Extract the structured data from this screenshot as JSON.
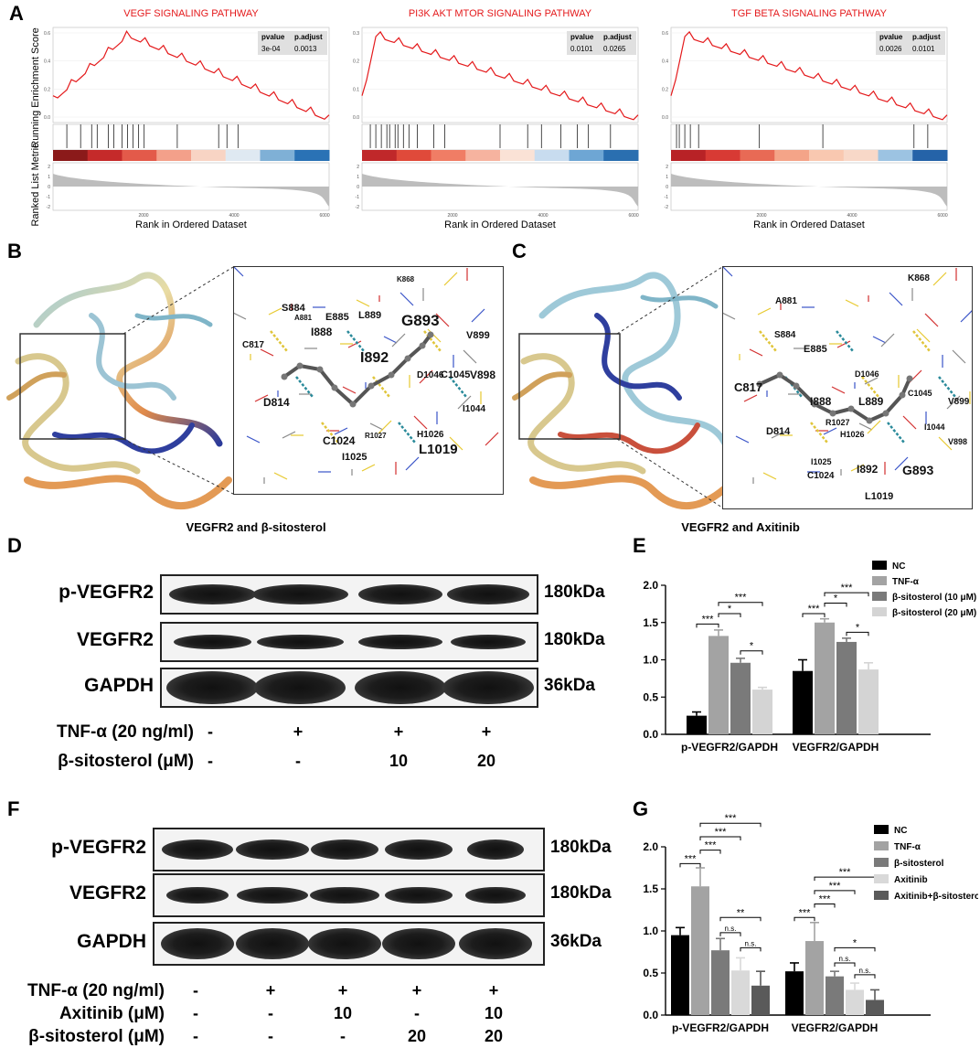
{
  "panels": {
    "A": "A",
    "B": "B",
    "C": "C",
    "D": "D",
    "E": "E",
    "F": "F",
    "G": "G"
  },
  "gsea": {
    "ylabel_top": "Running Enrichment Score",
    "ylabel_bottom": "Ranked List Metric",
    "xlabel": "Rank in Ordered Dataset",
    "x_ticks": [
      "2000",
      "4000",
      "6000"
    ],
    "metric_ticks": [
      "2",
      "1",
      "0",
      "-1",
      "-2"
    ],
    "plots": [
      {
        "title": "VEGF SIGNALING PATHWAY",
        "table_headers": [
          "pvalue",
          "p.adjust"
        ],
        "table_values": [
          "3e-04",
          "0.0013"
        ],
        "es_ticks": [
          "0.6",
          "0.4",
          "0.2",
          "0.0"
        ],
        "es_max": 0.6,
        "es_min": -0.02
      },
      {
        "title": "PI3K AKT MTOR SIGNALING PATHWAY",
        "table_headers": [
          "pvalue",
          "p.adjust"
        ],
        "table_values": [
          "0.0101",
          "0.0265"
        ],
        "es_ticks": [
          "0.3",
          "0.2",
          "0.1",
          "0.0"
        ],
        "es_max": 0.32,
        "es_min": -0.02
      },
      {
        "title": "TGF BETA SIGNALING PATHWAY",
        "table_headers": [
          "pvalue",
          "p.adjust"
        ],
        "table_values": [
          "0.0026",
          "0.0101"
        ],
        "es_ticks": [
          "0.6",
          "0.4",
          "0.2",
          "0.0"
        ],
        "es_max": 0.62,
        "es_min": -0.02
      }
    ]
  },
  "docking": {
    "B_caption": "VEGFR2 and β-sitosterol",
    "C_caption": "VEGFR2 and Axitinib",
    "B_residues": [
      "K868",
      "S884",
      "A881",
      "E885",
      "L889",
      "G893",
      "I888",
      "C817",
      "I892",
      "V899",
      "D1046",
      "C1045",
      "V898",
      "D814",
      "I1044",
      "H1026",
      "C1024",
      "R1027",
      "L1019",
      "I1025"
    ],
    "C_residues": [
      "K868",
      "A881",
      "S884",
      "E885",
      "C817",
      "D1046",
      "C1045",
      "V899",
      "I888",
      "L889",
      "D814",
      "R1027",
      "H1026",
      "I1044",
      "V898",
      "I1025",
      "I892",
      "G893",
      "C1024",
      "L1019"
    ]
  },
  "western_D": {
    "proteins": [
      "p-VEGFR2",
      "VEGFR2",
      "GAPDH"
    ],
    "kda": [
      "180kDa",
      "180kDa",
      "36kDa"
    ],
    "treatments": [
      {
        "label": "TNF-α (20 ng/ml)",
        "values": [
          "-",
          "+",
          "+",
          "+"
        ]
      },
      {
        "label": "β-sitosterol (μM)",
        "values": [
          "-",
          "-",
          "10",
          "20"
        ]
      }
    ]
  },
  "western_F": {
    "proteins": [
      "p-VEGFR2",
      "VEGFR2",
      "GAPDH"
    ],
    "kda": [
      "180kDa",
      "180kDa",
      "36kDa"
    ],
    "treatments": [
      {
        "label": "TNF-α (20 ng/ml)",
        "values": [
          "-",
          "+",
          "+",
          "+",
          "+"
        ]
      },
      {
        "label": "Axitinib (μM)",
        "values": [
          "-",
          "-",
          "10",
          "-",
          "10"
        ]
      },
      {
        "label": "β-sitosterol (μM)",
        "values": [
          "-",
          "-",
          "-",
          "20",
          "20"
        ]
      }
    ]
  },
  "chart_data": [
    {
      "panel": "E",
      "type": "bar",
      "categories": [
        "p-VEGFR2/GAPDH",
        "VEGFR2/GAPDH"
      ],
      "ylim": [
        0,
        2.0
      ],
      "yticks": [
        "0.0",
        "0.5",
        "1.0",
        "1.5",
        "2.0"
      ],
      "series": [
        {
          "name": "NC",
          "color": "#000000",
          "values": [
            0.25,
            0.85
          ],
          "errors": [
            0.05,
            0.15
          ]
        },
        {
          "name": "TNF-α",
          "color": "#a3a3a3",
          "values": [
            1.32,
            1.5
          ],
          "errors": [
            0.08,
            0.05
          ]
        },
        {
          "name": "β-sitosterol (10 μM)",
          "color": "#7a7a7a",
          "values": [
            0.96,
            1.24
          ],
          "errors": [
            0.06,
            0.05
          ]
        },
        {
          "name": "β-sitosterol (20 μM)",
          "color": "#d4d4d4",
          "values": [
            0.6,
            0.87
          ],
          "errors": [
            0.03,
            0.09
          ]
        }
      ],
      "significance": [
        {
          "cat": 0,
          "from": 0,
          "to": 1,
          "label": "***",
          "y": 1.48
        },
        {
          "cat": 0,
          "from": 1,
          "to": 2,
          "label": "*",
          "y": 1.62
        },
        {
          "cat": 0,
          "from": 1,
          "to": 3,
          "label": "***",
          "y": 1.77
        },
        {
          "cat": 0,
          "from": 2,
          "to": 3,
          "label": "*",
          "y": 1.12
        },
        {
          "cat": 1,
          "from": 0,
          "to": 1,
          "label": "***",
          "y": 1.62
        },
        {
          "cat": 1,
          "from": 1,
          "to": 2,
          "label": "*",
          "y": 1.76
        },
        {
          "cat": 1,
          "from": 1,
          "to": 3,
          "label": "***",
          "y": 1.9
        },
        {
          "cat": 1,
          "from": 2,
          "to": 3,
          "label": "*",
          "y": 1.37
        }
      ]
    },
    {
      "panel": "G",
      "type": "bar",
      "categories": [
        "p-VEGFR2/GAPDH",
        "VEGFR2/GAPDH"
      ],
      "ylim": [
        0,
        2.0
      ],
      "yticks": [
        "0.0",
        "0.5",
        "1.0",
        "1.5",
        "2.0"
      ],
      "series": [
        {
          "name": "NC",
          "color": "#000000",
          "values": [
            0.95,
            0.52
          ],
          "errors": [
            0.09,
            0.1
          ]
        },
        {
          "name": "TNF-α",
          "color": "#a3a3a3",
          "values": [
            1.53,
            0.88
          ],
          "errors": [
            0.22,
            0.22
          ]
        },
        {
          "name": "β-sitosterol",
          "color": "#7a7a7a",
          "values": [
            0.77,
            0.46
          ],
          "errors": [
            0.14,
            0.06
          ]
        },
        {
          "name": "Axitinib",
          "color": "#d9d9d9",
          "values": [
            0.53,
            0.3
          ],
          "errors": [
            0.15,
            0.08
          ]
        },
        {
          "name": "Axitinib+β-sitosterol",
          "color": "#5a5a5a",
          "values": [
            0.35,
            0.18
          ],
          "errors": [
            0.17,
            0.12
          ]
        }
      ],
      "significance": [
        {
          "cat": 0,
          "from": 0,
          "to": 1,
          "label": "***",
          "y": 1.8
        },
        {
          "cat": 0,
          "from": 1,
          "to": 2,
          "label": "***",
          "y": 1.96
        },
        {
          "cat": 0,
          "from": 1,
          "to": 3,
          "label": "***",
          "y": 2.12
        },
        {
          "cat": 0,
          "from": 1,
          "to": 4,
          "label": "***",
          "y": 2.28
        },
        {
          "cat": 0,
          "from": 2,
          "to": 3,
          "label": "n.s.",
          "y": 0.98
        },
        {
          "cat": 0,
          "from": 2,
          "to": 4,
          "label": "**",
          "y": 1.16
        },
        {
          "cat": 0,
          "from": 3,
          "to": 4,
          "label": "n.s.",
          "y": 0.8
        },
        {
          "cat": 1,
          "from": 0,
          "to": 1,
          "label": "***",
          "y": 1.16
        },
        {
          "cat": 1,
          "from": 1,
          "to": 2,
          "label": "***",
          "y": 1.32
        },
        {
          "cat": 1,
          "from": 1,
          "to": 3,
          "label": "***",
          "y": 1.48
        },
        {
          "cat": 1,
          "from": 1,
          "to": 4,
          "label": "***",
          "y": 1.64
        },
        {
          "cat": 1,
          "from": 2,
          "to": 3,
          "label": "n.s.",
          "y": 0.62
        },
        {
          "cat": 1,
          "from": 2,
          "to": 4,
          "label": "*",
          "y": 0.8
        },
        {
          "cat": 1,
          "from": 3,
          "to": 4,
          "label": "n.s.",
          "y": 0.48
        }
      ]
    }
  ]
}
